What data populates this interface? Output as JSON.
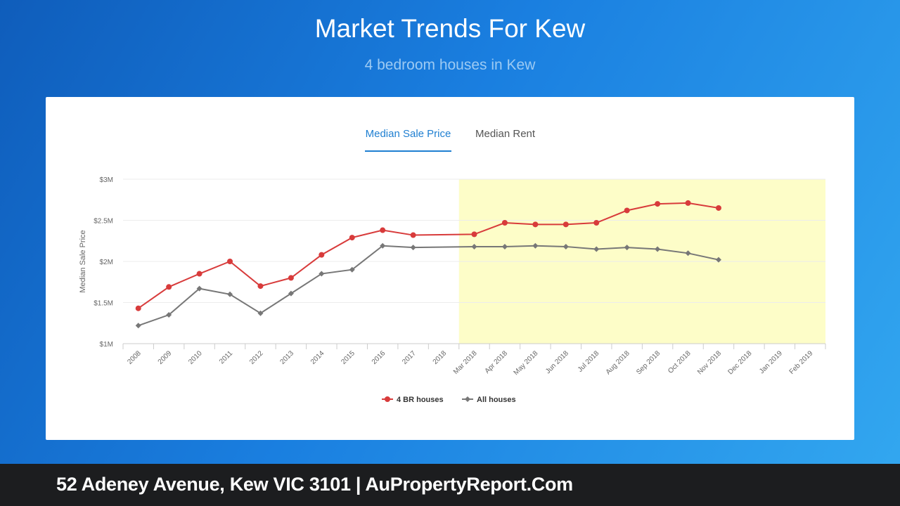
{
  "header": {
    "title": "Market Trends For Kew",
    "subtitle": "4 bedroom houses in Kew"
  },
  "tabs": {
    "active_label": "Median Sale Price",
    "rent_label": "Median Rent"
  },
  "footer": {
    "text": "52 Adeney Avenue, Kew VIC 3101 | AuPropertyReport.Com"
  },
  "colors": {
    "series_4br": "#d83b3b",
    "series_all": "#777777",
    "highlight": "#fdfdc8"
  },
  "chart_data": {
    "type": "line",
    "ylabel": "Median Sale Price",
    "xlabel": "",
    "ylim": [
      1000000,
      3000000
    ],
    "y_ticks": [
      {
        "value": 1000000,
        "label": "$1M"
      },
      {
        "value": 1500000,
        "label": "$1.5M"
      },
      {
        "value": 2000000,
        "label": "$2M"
      },
      {
        "value": 2500000,
        "label": "$2.5M"
      },
      {
        "value": 3000000,
        "label": "$3M"
      }
    ],
    "categories": [
      "2008",
      "2009",
      "2010",
      "2011",
      "2012",
      "2013",
      "2014",
      "2015",
      "2016",
      "2017",
      "2018",
      "Mar 2018",
      "Apr 2018",
      "May 2018",
      "Jun 2018",
      "Jul 2018",
      "Aug 2018",
      "Sep 2018",
      "Oct 2018",
      "Nov 2018",
      "Dec 2018",
      "Jan 2019",
      "Feb 2019"
    ],
    "highlight_range": [
      "Mar 2018",
      "Feb 2019"
    ],
    "grid": true,
    "legend_position": "bottom",
    "series": [
      {
        "name": "4 BR houses",
        "marker": "circle",
        "values": [
          1430000,
          1690000,
          1850000,
          2000000,
          1700000,
          1800000,
          2080000,
          2290000,
          2380000,
          2320000,
          null,
          2330000,
          2470000,
          2450000,
          2450000,
          2470000,
          2620000,
          2700000,
          2710000,
          2650000,
          null,
          null,
          null
        ]
      },
      {
        "name": "All houses",
        "marker": "diamond",
        "values": [
          1220000,
          1350000,
          1670000,
          1600000,
          1370000,
          1610000,
          1850000,
          1900000,
          2190000,
          2170000,
          null,
          2180000,
          2180000,
          2190000,
          2180000,
          2150000,
          2170000,
          2150000,
          2100000,
          2020000,
          null,
          null,
          null
        ]
      }
    ]
  }
}
